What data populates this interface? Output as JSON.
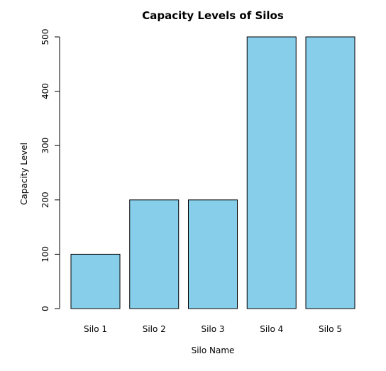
{
  "chart_data": {
    "type": "bar",
    "title": "Capacity Levels of Silos",
    "xlabel": "Silo Name",
    "ylabel": "Capacity Level",
    "categories": [
      "Silo 1",
      "Silo 2",
      "Silo 3",
      "Silo 4",
      "Silo 5"
    ],
    "values": [
      100,
      200,
      200,
      500,
      500
    ],
    "ylim": [
      0,
      500
    ],
    "yticks": [
      "0",
      "100",
      "200",
      "300",
      "400",
      "500"
    ],
    "bar_color": "#87CEEB",
    "bar_edge_color": "#000000",
    "grid": false,
    "legend": "none"
  }
}
